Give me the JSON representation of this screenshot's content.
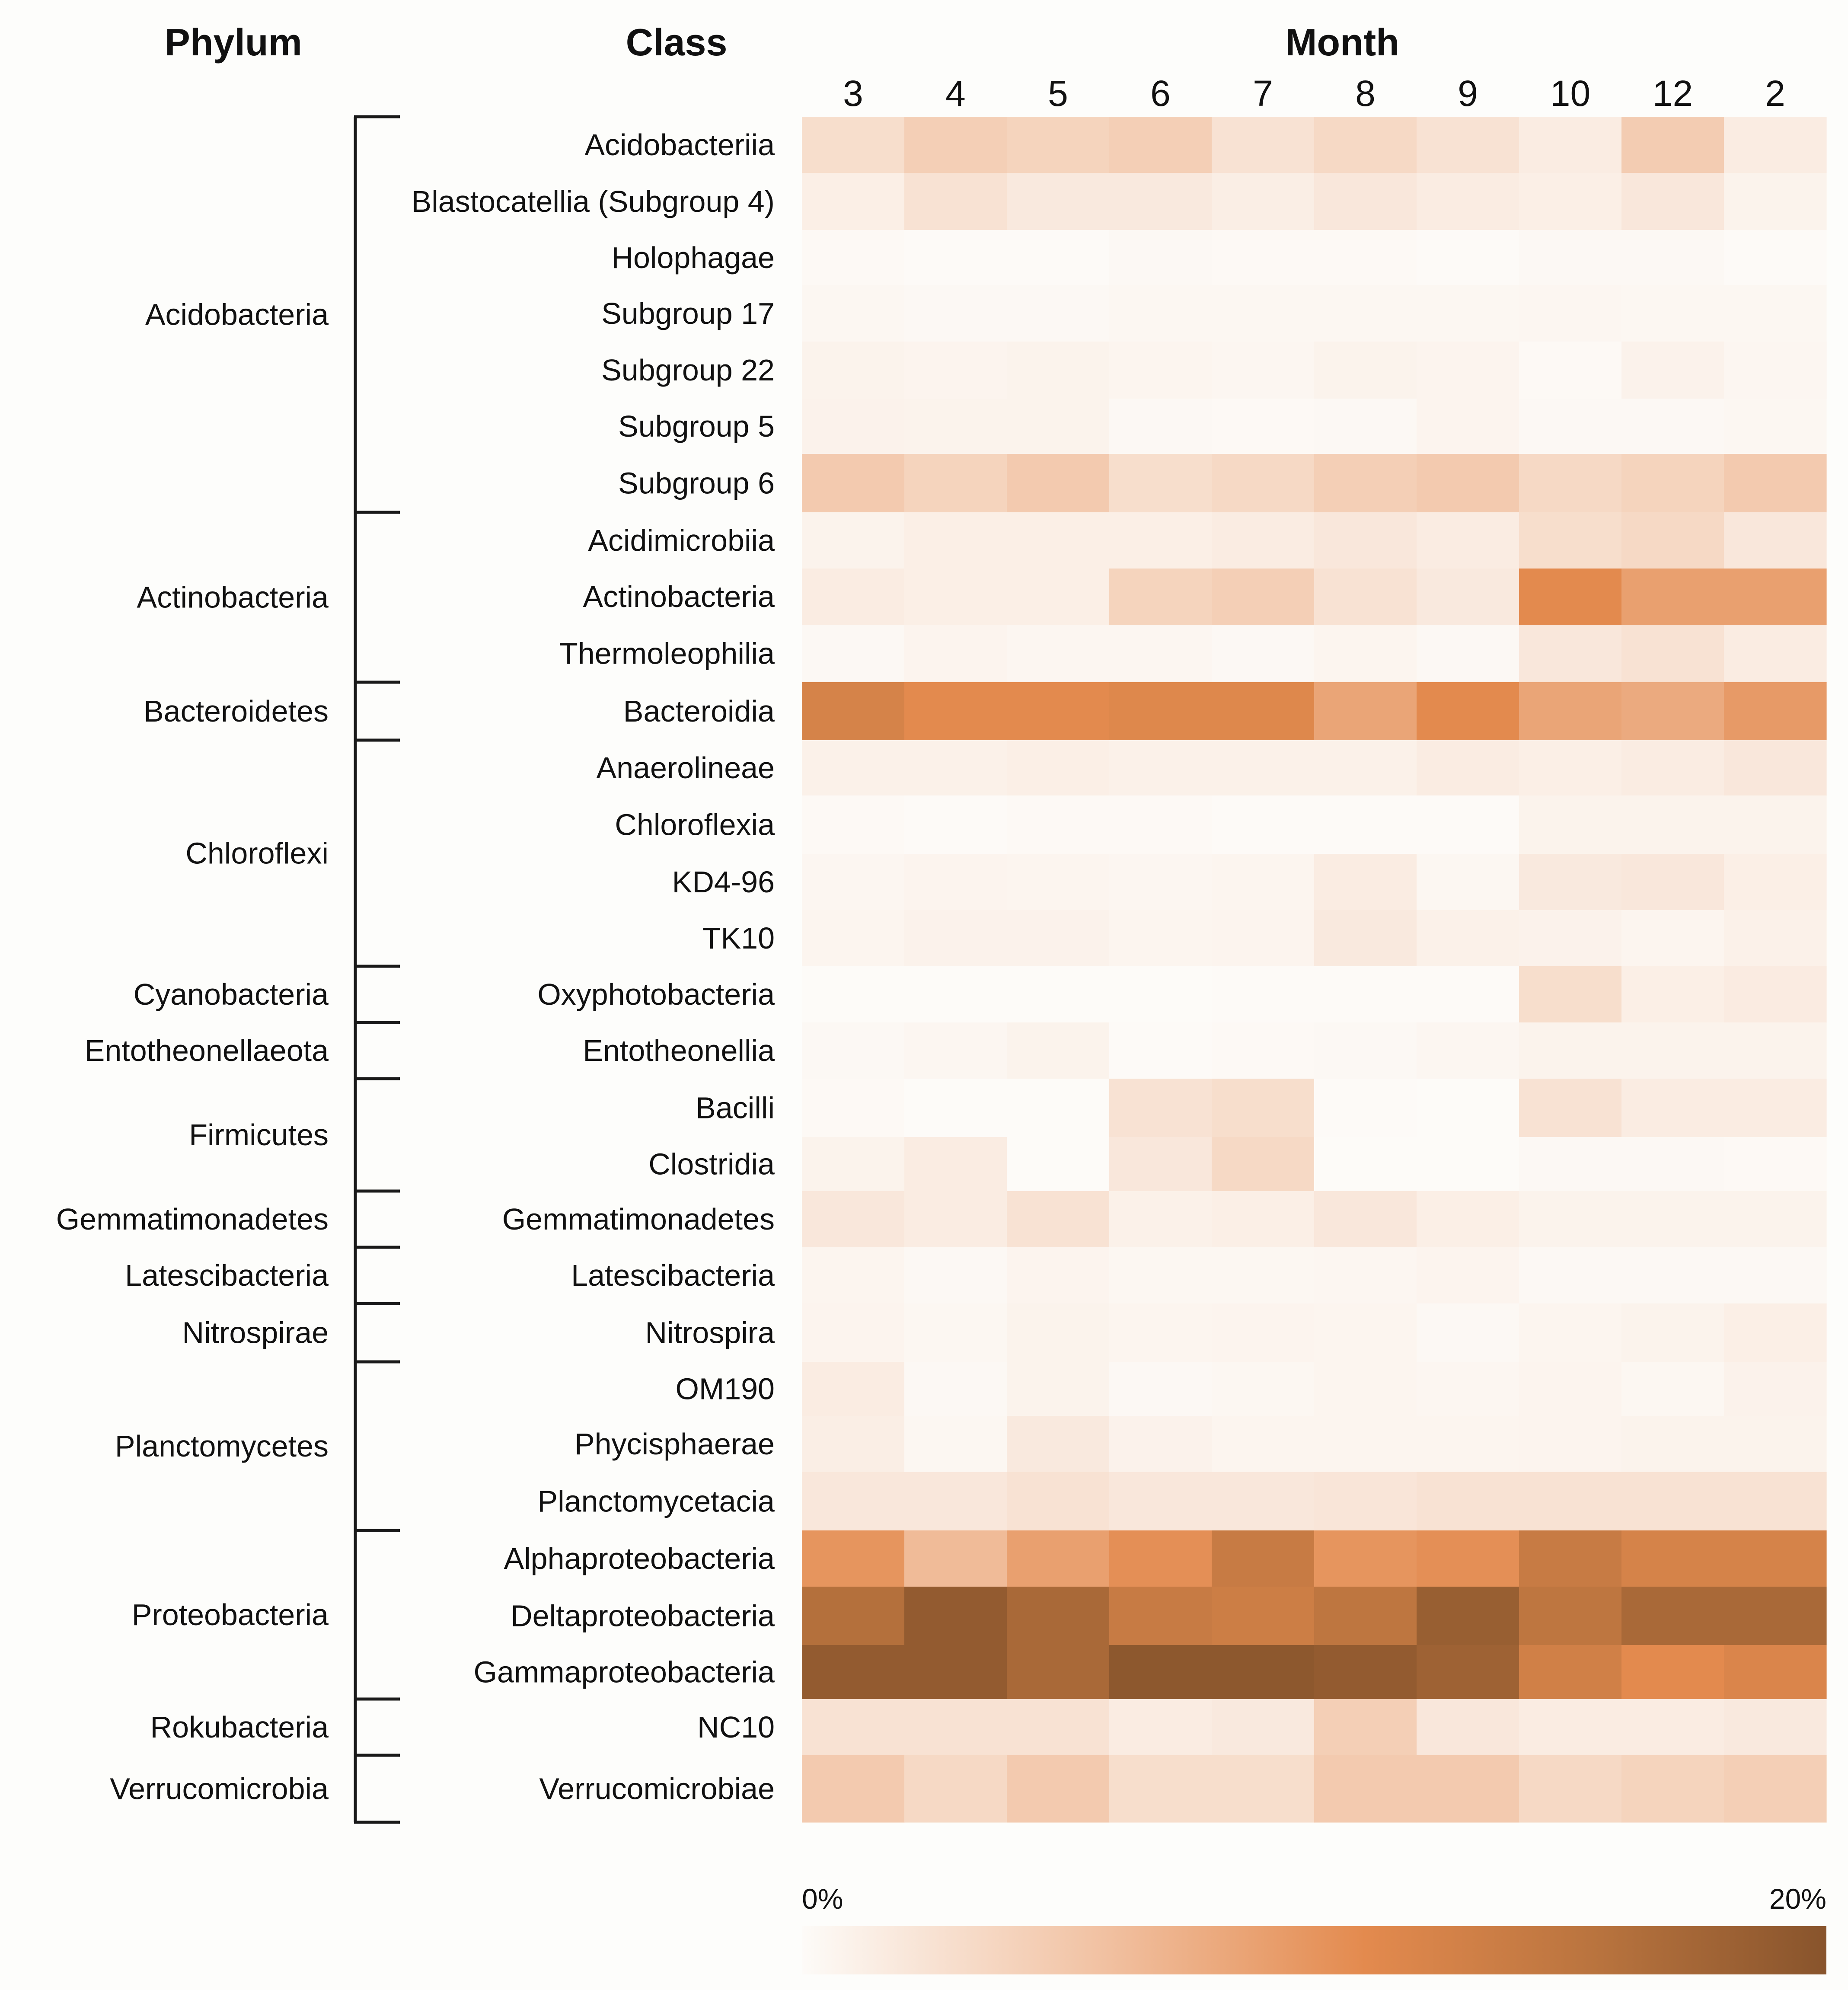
{
  "headers": {
    "phylum": "Phylum",
    "class": "Class",
    "month": "Month"
  },
  "chart_data": {
    "type": "heatmap",
    "title": "",
    "xlabel": "Month",
    "ylabel": "Class",
    "months": [
      "3",
      "4",
      "5",
      "6",
      "7",
      "8",
      "9",
      "10",
      "12",
      "2"
    ],
    "classes": [
      "Acidobacteriia",
      "Blastocatellia (Subgroup 4)",
      "Holophagae",
      "Subgroup 17",
      "Subgroup 22",
      "Subgroup 5",
      "Subgroup 6",
      "Acidimicrobiia",
      "Actinobacteria",
      "Thermoleophilia",
      "Bacteroidia",
      "Anaerolineae",
      "Chloroflexia",
      "KD4-96",
      "TK10",
      "Oxyphotobacteria",
      "Entotheonellia",
      "Bacilli",
      "Clostridia",
      "Gemmatimonadetes",
      "Latescibacteria",
      "Nitrospira",
      "OM190",
      "Phycisphaerae",
      "Planctomycetacia",
      "Alphaproteobacteria",
      "Deltaproteobacteria",
      "Gammaproteobacteria",
      "NC10",
      "Verrucomicrobiae"
    ],
    "phyla": [
      {
        "name": "Acidobacteria",
        "start": 0,
        "end": 6
      },
      {
        "name": "Actinobacteria",
        "start": 7,
        "end": 9
      },
      {
        "name": "Bacteroidetes",
        "start": 10,
        "end": 10
      },
      {
        "name": "Chloroflexi",
        "start": 11,
        "end": 14
      },
      {
        "name": "Cyanobacteria",
        "start": 15,
        "end": 15
      },
      {
        "name": "Entotheonellaeota",
        "start": 16,
        "end": 16
      },
      {
        "name": "Firmicutes",
        "start": 17,
        "end": 18
      },
      {
        "name": "Gemmatimonadetes",
        "start": 19,
        "end": 19
      },
      {
        "name": "Latescibacteria",
        "start": 20,
        "end": 20
      },
      {
        "name": "Nitrospirae",
        "start": 21,
        "end": 21
      },
      {
        "name": "Planctomycetes",
        "start": 22,
        "end": 24
      },
      {
        "name": "Proteobacteria",
        "start": 25,
        "end": 27
      },
      {
        "name": "Rokubacteria",
        "start": 28,
        "end": 28
      },
      {
        "name": "Verrucomicrobia",
        "start": 29,
        "end": 29
      }
    ],
    "values": [
      [
        3.0,
        4.5,
        4.0,
        4.5,
        2.5,
        3.5,
        2.5,
        1.5,
        4.8,
        1.5
      ],
      [
        1.2,
        2.5,
        1.8,
        1.8,
        1.3,
        2.0,
        1.5,
        1.2,
        2.0,
        0.8
      ],
      [
        0.2,
        0.1,
        0.1,
        0.3,
        0.2,
        0.2,
        0.1,
        0.3,
        0.3,
        0.1
      ],
      [
        0.4,
        0.3,
        0.3,
        0.4,
        0.4,
        0.4,
        0.4,
        0.5,
        0.4,
        0.4
      ],
      [
        0.8,
        0.7,
        0.8,
        0.6,
        0.5,
        0.8,
        0.7,
        0.2,
        0.9,
        0.5
      ],
      [
        0.9,
        0.8,
        0.8,
        0.3,
        0.2,
        0.3,
        0.7,
        0.3,
        0.3,
        0.4
      ],
      [
        5.0,
        4.0,
        5.0,
        3.0,
        3.5,
        4.5,
        5.0,
        3.5,
        4.0,
        5.0
      ],
      [
        0.8,
        1.2,
        1.2,
        1.2,
        1.5,
        2.0,
        1.5,
        3.0,
        3.5,
        2.0
      ],
      [
        1.5,
        1.2,
        1.2,
        4.0,
        4.5,
        2.5,
        1.8,
        11.0,
        9.0,
        9.0
      ],
      [
        0.3,
        0.7,
        0.5,
        0.5,
        0.3,
        0.6,
        0.3,
        2.0,
        2.5,
        1.5
      ],
      [
        12.5,
        11.0,
        11.0,
        11.5,
        11.5,
        8.5,
        11.0,
        8.5,
        8.0,
        9.5
      ],
      [
        1.0,
        1.0,
        1.2,
        1.0,
        1.0,
        1.0,
        1.5,
        1.2,
        1.5,
        2.0
      ],
      [
        0.2,
        0.1,
        0.2,
        0.2,
        0.1,
        0.1,
        0.1,
        0.8,
        0.8,
        0.8
      ],
      [
        0.5,
        0.7,
        0.6,
        0.5,
        0.6,
        1.5,
        0.4,
        1.8,
        2.0,
        1.2
      ],
      [
        0.6,
        0.9,
        0.9,
        0.6,
        0.7,
        1.8,
        1.0,
        0.9,
        0.6,
        1.0
      ],
      [
        0.0,
        0.0,
        0.0,
        0.0,
        0.1,
        0.1,
        0.1,
        3.0,
        1.2,
        1.6
      ],
      [
        0.3,
        0.5,
        0.8,
        0.1,
        0.2,
        0.3,
        0.5,
        0.8,
        0.8,
        0.8
      ],
      [
        0.2,
        0.0,
        0.0,
        2.5,
        3.0,
        0.1,
        0.0,
        2.5,
        1.5,
        1.5
      ],
      [
        0.8,
        1.5,
        0.0,
        2.0,
        3.5,
        0.0,
        0.0,
        0.3,
        0.3,
        0.2
      ],
      [
        2.0,
        1.5,
        2.5,
        1.0,
        1.2,
        2.0,
        1.2,
        0.8,
        0.8,
        0.8
      ],
      [
        0.6,
        0.3,
        0.7,
        0.4,
        0.4,
        0.5,
        0.7,
        0.3,
        0.3,
        0.3
      ],
      [
        0.7,
        0.4,
        0.8,
        0.6,
        0.7,
        0.6,
        0.3,
        0.6,
        0.8,
        1.2
      ],
      [
        1.5,
        0.3,
        0.8,
        0.3,
        0.4,
        0.6,
        0.5,
        0.7,
        0.4,
        0.9
      ],
      [
        1.3,
        0.4,
        1.8,
        0.9,
        0.6,
        0.6,
        0.6,
        0.7,
        0.8,
        0.8
      ],
      [
        2.0,
        2.0,
        2.5,
        2.0,
        2.0,
        2.2,
        2.5,
        2.5,
        2.5,
        2.5
      ],
      [
        10.0,
        6.5,
        9.0,
        10.5,
        14.0,
        10.0,
        10.5,
        14.0,
        12.5,
        12.5
      ],
      [
        16.0,
        19.0,
        17.0,
        14.0,
        13.5,
        15.0,
        18.5,
        15.0,
        17.0,
        17.0
      ],
      [
        19.0,
        19.0,
        17.0,
        19.5,
        19.5,
        19.0,
        18.0,
        13.0,
        11.0,
        12.0
      ],
      [
        2.5,
        2.5,
        2.5,
        1.5,
        1.8,
        4.5,
        2.0,
        1.5,
        1.5,
        1.8
      ],
      [
        5.0,
        3.5,
        5.0,
        3.0,
        3.0,
        5.0,
        5.0,
        3.5,
        4.0,
        4.5
      ]
    ],
    "range": [
      0,
      20
    ],
    "colorbar": {
      "min_label": "0%",
      "max_label": "20%",
      "colors": [
        "#fdfbf8",
        "#f1c0a0",
        "#e38a4e",
        "#b8733e",
        "#88542c"
      ]
    }
  }
}
